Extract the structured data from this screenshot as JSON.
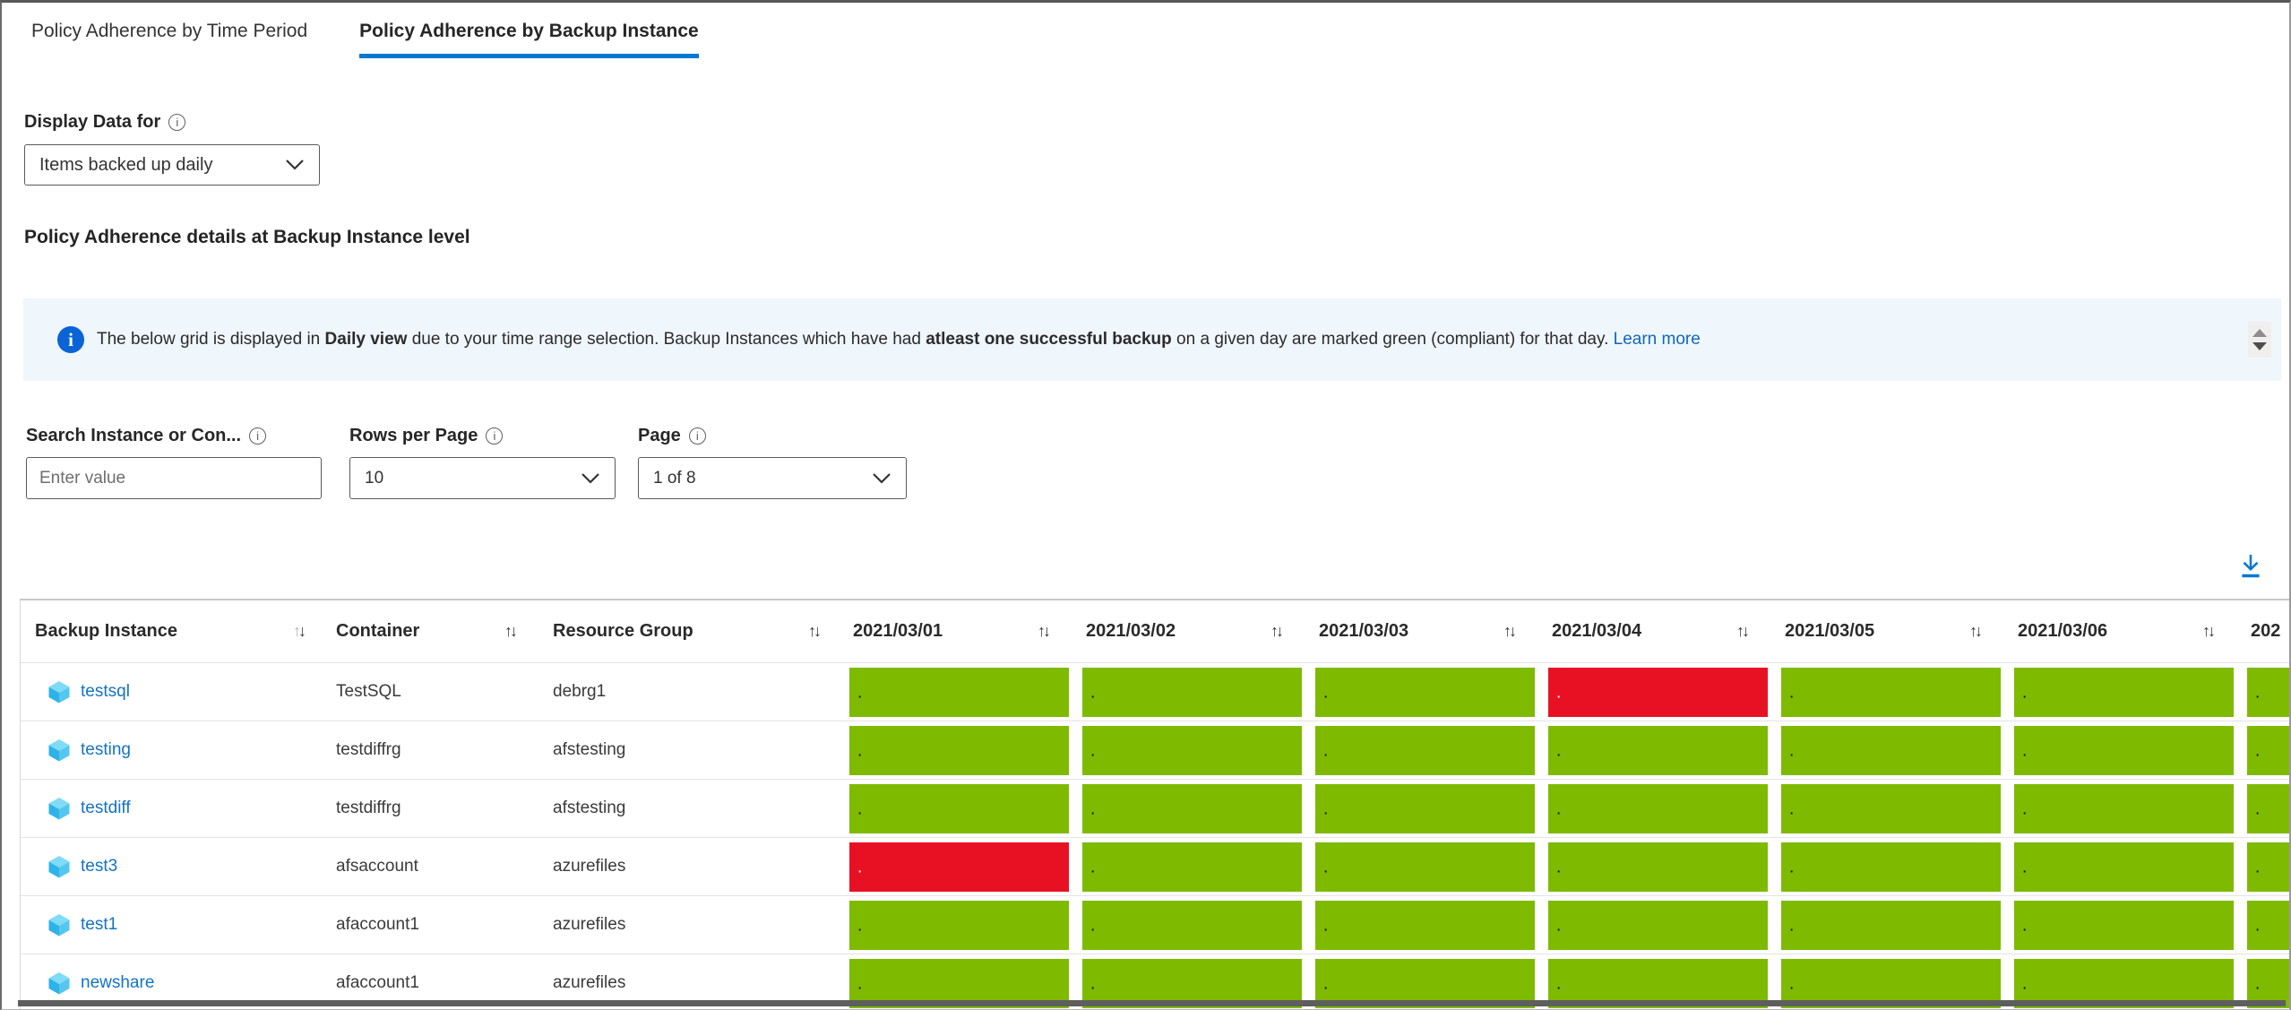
{
  "tabs": [
    {
      "label": "Policy Adherence by Time Period",
      "active": false
    },
    {
      "label": "Policy Adherence by Backup Instance",
      "active": true
    }
  ],
  "display_data": {
    "label": "Display Data for",
    "value": "Items backed up daily"
  },
  "section_title": "Policy Adherence details at Backup Instance level",
  "banner": {
    "part1": "The below grid is displayed in ",
    "bold1": "Daily view",
    "part2": " due to your time range selection. Backup Instances which have had ",
    "bold2": "atleast one successful backup",
    "part3": " on a given day are marked green (compliant) for that day. ",
    "link": "Learn more"
  },
  "filters": {
    "search": {
      "label": "Search Instance or Con...",
      "placeholder": "Enter value"
    },
    "rows_per_page": {
      "label": "Rows per Page",
      "value": "10"
    },
    "page": {
      "label": "Page",
      "value": "1 of 8"
    }
  },
  "table": {
    "columns": [
      "Backup Instance",
      "Container",
      "Resource Group",
      "2021/03/01",
      "2021/03/02",
      "2021/03/03",
      "2021/03/04",
      "2021/03/05",
      "2021/03/06",
      "202"
    ],
    "cell_marker": ".",
    "rows": [
      {
        "instance": "testsql",
        "container": "TestSQL",
        "resource_group": "debrg1",
        "statuses": [
          "compliant",
          "compliant",
          "compliant",
          "non_compliant",
          "compliant",
          "compliant",
          "compliant"
        ]
      },
      {
        "instance": "testing",
        "container": "testdiffrg",
        "resource_group": "afstesting",
        "statuses": [
          "compliant",
          "compliant",
          "compliant",
          "compliant",
          "compliant",
          "compliant",
          "compliant"
        ]
      },
      {
        "instance": "testdiff",
        "container": "testdiffrg",
        "resource_group": "afstesting",
        "statuses": [
          "compliant",
          "compliant",
          "compliant",
          "compliant",
          "compliant",
          "compliant",
          "compliant"
        ]
      },
      {
        "instance": "test3",
        "container": "afsaccount",
        "resource_group": "azurefiles",
        "statuses": [
          "non_compliant",
          "compliant",
          "compliant",
          "compliant",
          "compliant",
          "compliant",
          "compliant"
        ]
      },
      {
        "instance": "test1",
        "container": "afaccount1",
        "resource_group": "azurefiles",
        "statuses": [
          "compliant",
          "compliant",
          "compliant",
          "compliant",
          "compliant",
          "compliant",
          "compliant"
        ]
      },
      {
        "instance": "newshare",
        "container": "afaccount1",
        "resource_group": "azurefiles",
        "statuses": [
          "compliant",
          "compliant",
          "compliant",
          "compliant",
          "compliant",
          "compliant",
          "compliant"
        ]
      }
    ]
  },
  "colors": {
    "compliant": "#7EBA00",
    "non_compliant": "#E81123",
    "dot_on_compliant": "#121212",
    "dot_on_non_compliant": "#ffffff",
    "accent": "#0078D4"
  }
}
